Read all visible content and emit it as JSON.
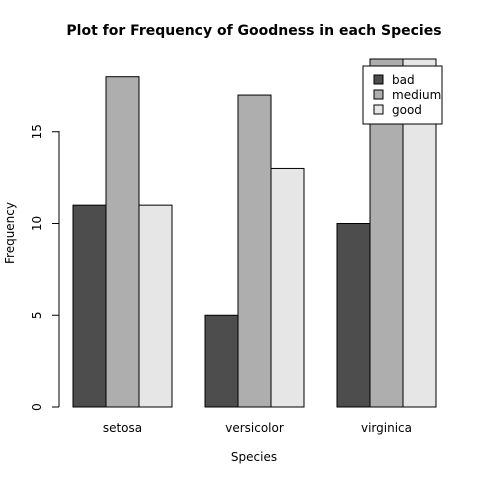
{
  "chart_data": {
    "type": "bar",
    "title": "Plot for Frequency of Goodness in each Species",
    "xlabel": "Species",
    "ylabel": "Frequency",
    "categories": [
      "setosa",
      "versicolor",
      "virginica"
    ],
    "series": [
      {
        "name": "bad",
        "values": [
          11,
          5,
          10
        ],
        "color": "#4d4d4d"
      },
      {
        "name": "medium",
        "values": [
          18,
          17,
          19
        ],
        "color": "#aeaeae"
      },
      {
        "name": "good",
        "values": [
          11,
          13,
          21
        ],
        "color": "#e6e6e6"
      }
    ],
    "yticks": [
      0,
      5,
      10,
      15
    ],
    "ylim": [
      0,
      19
    ],
    "grid": false,
    "legend_position": "top-right",
    "bar_layout": "grouped"
  }
}
